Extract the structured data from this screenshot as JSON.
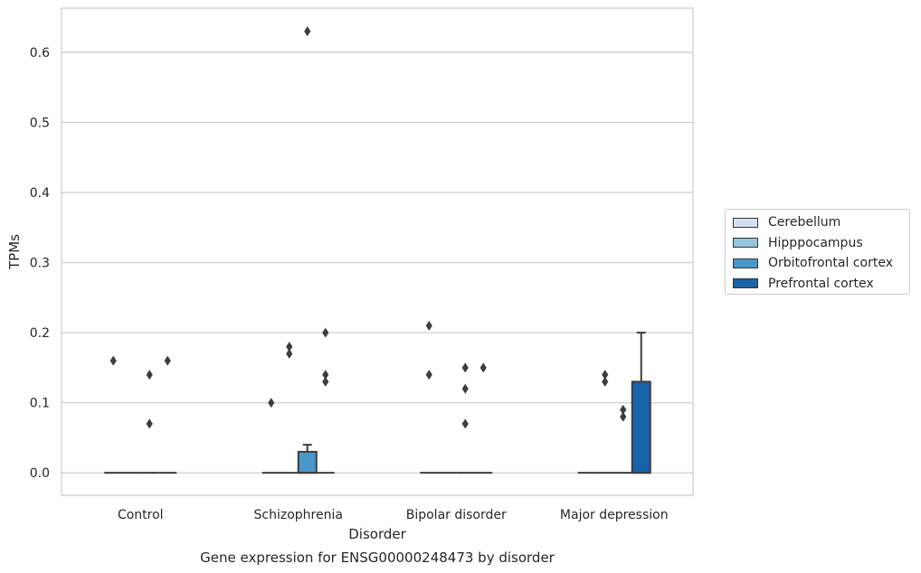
{
  "chart_data": {
    "type": "box",
    "title": "Gene expression for ENSG00000248473 by disorder",
    "xlabel": "Disorder",
    "ylabel": "TPMs",
    "ylim": [
      -0.032,
      0.663
    ],
    "yticks": [
      0.0,
      0.1,
      0.2,
      0.3,
      0.4,
      0.5,
      0.6
    ],
    "ytick_labels": [
      "0.0",
      "0.1",
      "0.2",
      "0.3",
      "0.4",
      "0.5",
      "0.6"
    ],
    "grid": "horizontal",
    "legend_position": "right-center",
    "categories": [
      "Control",
      "Schizophrenia",
      "Bipolar disorder",
      "Major depression"
    ],
    "series": [
      {
        "name": "Cerebellum",
        "color": "#d0e1f2",
        "boxes": [
          {
            "q1": 0,
            "median": 0,
            "q3": 0,
            "whisker_low": 0,
            "whisker_high": 0,
            "outliers": [
              0.16
            ]
          },
          {
            "q1": 0,
            "median": 0,
            "q3": 0,
            "whisker_low": 0,
            "whisker_high": 0,
            "outliers": [
              0.1
            ]
          },
          {
            "q1": 0,
            "median": 0,
            "q3": 0,
            "whisker_low": 0,
            "whisker_high": 0,
            "outliers": [
              0.21,
              0.14
            ]
          },
          {
            "q1": 0,
            "median": 0,
            "q3": 0,
            "whisker_low": 0,
            "whisker_high": 0,
            "outliers": []
          }
        ]
      },
      {
        "name": "Hipppocampus",
        "color": "#94c4df",
        "boxes": [
          {
            "q1": 0,
            "median": 0,
            "q3": 0,
            "whisker_low": 0,
            "whisker_high": 0,
            "outliers": []
          },
          {
            "q1": 0,
            "median": 0,
            "q3": 0,
            "whisker_low": 0,
            "whisker_high": 0,
            "outliers": [
              0.18,
              0.17
            ]
          },
          {
            "q1": 0,
            "median": 0,
            "q3": 0,
            "whisker_low": 0,
            "whisker_high": 0,
            "outliers": []
          },
          {
            "q1": 0,
            "median": 0,
            "q3": 0,
            "whisker_low": 0,
            "whisker_high": 0,
            "outliers": [
              0.14,
              0.13
            ]
          }
        ]
      },
      {
        "name": "Orbitofrontal cortex",
        "color": "#4a98c9",
        "boxes": [
          {
            "q1": 0,
            "median": 0,
            "q3": 0,
            "whisker_low": 0,
            "whisker_high": 0,
            "outliers": [
              0.14,
              0.07
            ]
          },
          {
            "q1": 0,
            "median": 0,
            "q3": 0.03,
            "whisker_low": 0,
            "whisker_high": 0.04,
            "outliers": [
              0.63
            ]
          },
          {
            "q1": 0,
            "median": 0,
            "q3": 0,
            "whisker_low": 0,
            "whisker_high": 0,
            "outliers": [
              0.15,
              0.12,
              0.07
            ]
          },
          {
            "q1": 0,
            "median": 0,
            "q3": 0,
            "whisker_low": 0,
            "whisker_high": 0,
            "outliers": [
              0.09,
              0.08
            ]
          }
        ]
      },
      {
        "name": "Prefrontal cortex",
        "color": "#1764ab",
        "boxes": [
          {
            "q1": 0,
            "median": 0,
            "q3": 0,
            "whisker_low": 0,
            "whisker_high": 0,
            "outliers": [
              0.16
            ]
          },
          {
            "q1": 0,
            "median": 0,
            "q3": 0,
            "whisker_low": 0,
            "whisker_high": 0,
            "outliers": [
              0.2,
              0.14,
              0.13
            ]
          },
          {
            "q1": 0,
            "median": 0,
            "q3": 0,
            "whisker_low": 0,
            "whisker_high": 0,
            "outliers": [
              0.15
            ]
          },
          {
            "q1": 0,
            "median": 0,
            "q3": 0.13,
            "whisker_low": 0,
            "whisker_high": 0.2,
            "outliers": []
          }
        ]
      }
    ]
  }
}
